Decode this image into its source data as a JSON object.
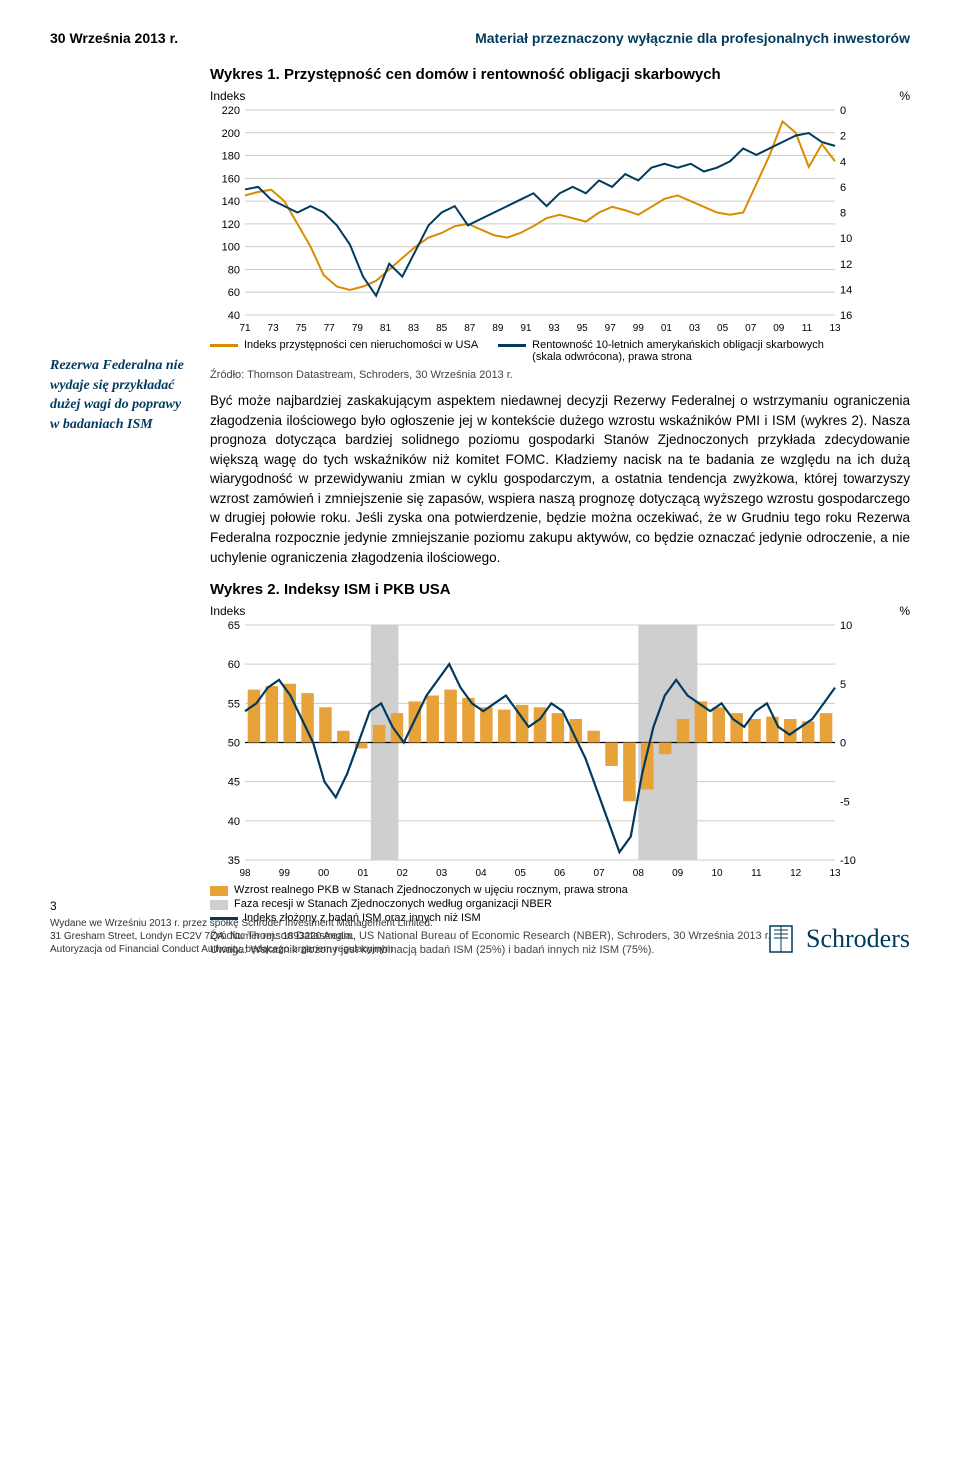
{
  "header": {
    "date": "30 Września 2013 r.",
    "disclaimer": "Materiał przeznaczony wyłącznie dla profesjonalnych inwestorów"
  },
  "sidebar_note": "Rezerwa Federalna nie wydaje się przykładać dużej wagi do poprawy w badaniach ISM",
  "chart1": {
    "title": "Wykres 1. Przystępność cen domów i rentowność obligacji skarbowych",
    "left_axis_label": "Indeks",
    "right_axis_label": "%",
    "left_ticks": [
      220,
      200,
      180,
      160,
      140,
      120,
      100,
      80,
      60,
      40
    ],
    "right_ticks": [
      0,
      2,
      4,
      6,
      8,
      10,
      12,
      14,
      16
    ],
    "x_ticks": [
      "71",
      "73",
      "75",
      "77",
      "79",
      "81",
      "83",
      "85",
      "87",
      "89",
      "91",
      "93",
      "95",
      "97",
      "99",
      "01",
      "03",
      "05",
      "07",
      "09",
      "11",
      "13"
    ],
    "series_index_color": "#d98c00",
    "series_yield_color": "#003a5d",
    "grid_color": "#cccccc",
    "legend_index": "Indeks przystępności cen nieruchomości w USA",
    "legend_yield": "Rentowność 10-letnich amerykańskich obligacji skarbowych (skala odwrócona), prawa strona",
    "source": "Źródło: Thomson Datastream, Schroders, 30 Września 2013 r.",
    "index_values": [
      145,
      148,
      150,
      140,
      120,
      100,
      75,
      65,
      62,
      65,
      70,
      80,
      90,
      100,
      108,
      112,
      118,
      120,
      115,
      110,
      108,
      112,
      118,
      125,
      128,
      125,
      122,
      130,
      135,
      132,
      128,
      135,
      142,
      145,
      140,
      135,
      130,
      128,
      130,
      155,
      180,
      210,
      200,
      170,
      190,
      175
    ],
    "yield_values": [
      6.2,
      6.0,
      7.0,
      7.5,
      8.0,
      7.5,
      8.0,
      9.0,
      10.5,
      13.0,
      14.5,
      12.0,
      13.0,
      11.0,
      9.0,
      8.0,
      7.5,
      9.0,
      8.5,
      8.0,
      7.5,
      7.0,
      6.5,
      7.5,
      6.5,
      6.0,
      6.5,
      5.5,
      6.0,
      5.0,
      5.5,
      4.5,
      4.2,
      4.5,
      4.2,
      4.8,
      4.5,
      4.0,
      3.0,
      3.5,
      3.0,
      2.5,
      2.0,
      1.8,
      2.5,
      2.8
    ]
  },
  "body_para": "Być może najbardziej zaskakującym aspektem niedawnej decyzji Rezerwy Federalnej o wstrzymaniu ograniczenia złagodzenia ilościowego było ogłoszenie jej w kontekście dużego wzrostu wskaźników PMI i ISM (wykres 2). Nasza prognoza dotycząca bardziej solidnego poziomu gospodarki Stanów Zjednoczonych przykłada zdecydowanie większą wagę do tych wskaźników niż komitet FOMC. Kładziemy nacisk na te badania ze względu na ich dużą wiarygodność w przewidywaniu zmian w cyklu gospodarczym, a ostatnia tendencja zwyżkowa, której towarzyszy wzrost zamówień i zmniejszenie się zapasów, wspiera naszą prognozę dotyczącą wyższego wzrostu gospodarczego w drugiej połowie roku. Jeśli zyska ona potwierdzenie, będzie można oczekiwać, że w Grudniu tego roku Rezerwa Federalna rozpocznie jedynie zmniejszanie poziomu zakupu aktywów, co będzie oznaczać jedynie odroczenie, a nie uchylenie ograniczenia złagodzenia ilościowego.",
  "chart2": {
    "title": "Wykres 2. Indeksy ISM i PKB USA",
    "left_axis_label": "Indeks",
    "right_axis_label": "%",
    "left_ticks": [
      65,
      60,
      55,
      50,
      45,
      40,
      35
    ],
    "right_ticks": [
      10,
      5,
      0,
      -5,
      -10
    ],
    "x_ticks": [
      "98",
      "99",
      "00",
      "01",
      "02",
      "03",
      "04",
      "05",
      "06",
      "07",
      "08",
      "09",
      "10",
      "11",
      "12",
      "13"
    ],
    "gdp_color": "#e8a23a",
    "ism_color": "#003a5d",
    "recession_color": "#cfcfcf",
    "grid_color": "#cccccc",
    "legend_gdp": "Wzrost realnego PKB w Stanach Zjednoczonych w ujęciu rocznym, prawa strona",
    "legend_recession": "Faza recesji w Stanach Zjednoczonych według organizacji NBER",
    "legend_ism": "Indeks złożony z badań ISM oraz innych niż ISM",
    "source": "Źródło: Thomson Datastream, US National Bureau of Economic Research (NBER), Schroders, 30 Września 2013 r.",
    "note": "Uwaga: Wskaźnik złożony jest kombinacją badań ISM (25%) i badań innych niż ISM (75%).",
    "recession_bands": [
      [
        3.2,
        3.9
      ],
      [
        10.0,
        11.5
      ]
    ],
    "ism_values": [
      54,
      55,
      57,
      58,
      56,
      53,
      50,
      45,
      43,
      46,
      50,
      54,
      55,
      52,
      50,
      53,
      56,
      58,
      60,
      57,
      55,
      54,
      55,
      56,
      54,
      52,
      53,
      55,
      54,
      51,
      48,
      44,
      40,
      36,
      38,
      46,
      52,
      56,
      58,
      56,
      55,
      54,
      55,
      53,
      52,
      54,
      55,
      52,
      51,
      52,
      53,
      55,
      57
    ],
    "gdp_bars": [
      4.5,
      4.8,
      5.0,
      4.2,
      3.0,
      1.0,
      -0.5,
      1.5,
      2.5,
      3.5,
      4.0,
      4.5,
      3.8,
      3.0,
      2.8,
      3.2,
      3.0,
      2.5,
      2.0,
      1.0,
      -2.0,
      -5.0,
      -4.0,
      -1.0,
      2.0,
      3.5,
      3.0,
      2.5,
      2.0,
      2.2,
      2.0,
      1.8,
      2.5
    ]
  },
  "footer": {
    "page": "3",
    "line1": "Wydane we Wrześniu 2013 r. przez spółkę Schroder Investment Management Limited.",
    "line2": "31 Gresham Street, Londyn EC2V 7QA. Numer rej.: 1893220 Anglia.",
    "line3": "Autoryzacja od Financial Conduct Authority, będącego organem regulacyjnym",
    "logo_text": "Schroders"
  }
}
